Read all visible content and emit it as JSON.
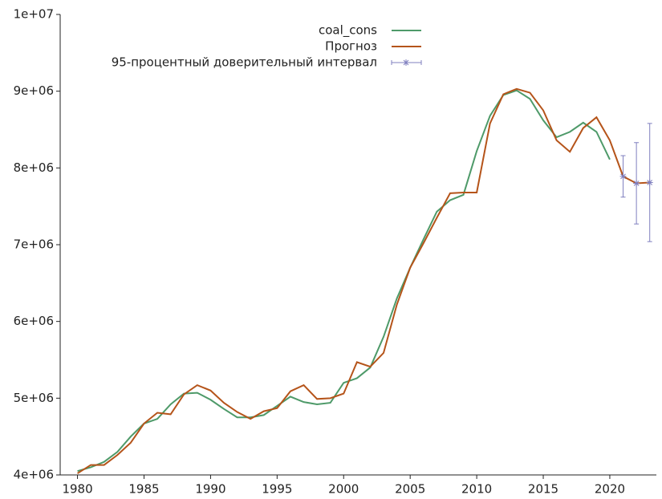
{
  "chart_data": {
    "type": "line",
    "xlim": [
      1978.7,
      2023.5
    ],
    "ylim": [
      4000000,
      10000000
    ],
    "xticks": [
      1980,
      1985,
      1990,
      1995,
      2000,
      2005,
      2010,
      2015,
      2020
    ],
    "yticks": [
      {
        "value": 4000000,
        "label": "4e+06"
      },
      {
        "value": 5000000,
        "label": "5e+06"
      },
      {
        "value": 6000000,
        "label": "6e+06"
      },
      {
        "value": 7000000,
        "label": "7e+06"
      },
      {
        "value": 8000000,
        "label": "8e+06"
      },
      {
        "value": 9000000,
        "label": "9e+06"
      },
      {
        "value": 10000000,
        "label": "1e+07"
      }
    ],
    "series": [
      {
        "name": "coal_cons",
        "color": "#4e9a69",
        "x": [
          1980,
          1981,
          1982,
          1983,
          1984,
          1985,
          1986,
          1987,
          1988,
          1989,
          1990,
          1991,
          1992,
          1993,
          1994,
          1995,
          1996,
          1997,
          1998,
          1999,
          2000,
          2001,
          2002,
          2003,
          2004,
          2005,
          2006,
          2007,
          2008,
          2009,
          2010,
          2011,
          2012,
          2013,
          2014,
          2015,
          2016,
          2017,
          2018,
          2019,
          2020
        ],
        "values": [
          4050000,
          4100000,
          4170000,
          4300000,
          4500000,
          4670000,
          4730000,
          4920000,
          5060000,
          5070000,
          4980000,
          4860000,
          4750000,
          4750000,
          4780000,
          4900000,
          5020000,
          4950000,
          4920000,
          4940000,
          5200000,
          5260000,
          5400000,
          5800000,
          6300000,
          6700000,
          7070000,
          7430000,
          7580000,
          7650000,
          8220000,
          8680000,
          8950000,
          9010000,
          8900000,
          8620000,
          8400000,
          8470000,
          8590000,
          8470000,
          8110000
        ]
      },
      {
        "name": "Прогноз",
        "color": "#b5541a",
        "x": [
          1980,
          1981,
          1982,
          1983,
          1984,
          1985,
          1986,
          1987,
          1988,
          1989,
          1990,
          1991,
          1992,
          1993,
          1994,
          1995,
          1996,
          1997,
          1998,
          1999,
          2000,
          2001,
          2002,
          2003,
          2004,
          2005,
          2006,
          2007,
          2008,
          2009,
          2010,
          2011,
          2012,
          2013,
          2014,
          2015,
          2016,
          2017,
          2018,
          2019,
          2020,
          2021,
          2022,
          2023
        ],
        "values": [
          4020000,
          4130000,
          4130000,
          4260000,
          4420000,
          4670000,
          4810000,
          4790000,
          5050000,
          5170000,
          5100000,
          4940000,
          4820000,
          4730000,
          4830000,
          4870000,
          5090000,
          5170000,
          4990000,
          5000000,
          5060000,
          5470000,
          5410000,
          5590000,
          6220000,
          6700000,
          7020000,
          7350000,
          7670000,
          7680000,
          7680000,
          8580000,
          8960000,
          9030000,
          8980000,
          8750000,
          8360000,
          8210000,
          8520000,
          8660000,
          8360000,
          7890000,
          7800000,
          7810000
        ]
      },
      {
        "name": "95-процентный доверительный интервал",
        "color": "#7f7fbf",
        "x": [
          2021,
          2022,
          2023
        ],
        "values": [
          7890000,
          7800000,
          7810000
        ],
        "errors": [
          270000,
          530000,
          770000
        ]
      }
    ]
  }
}
